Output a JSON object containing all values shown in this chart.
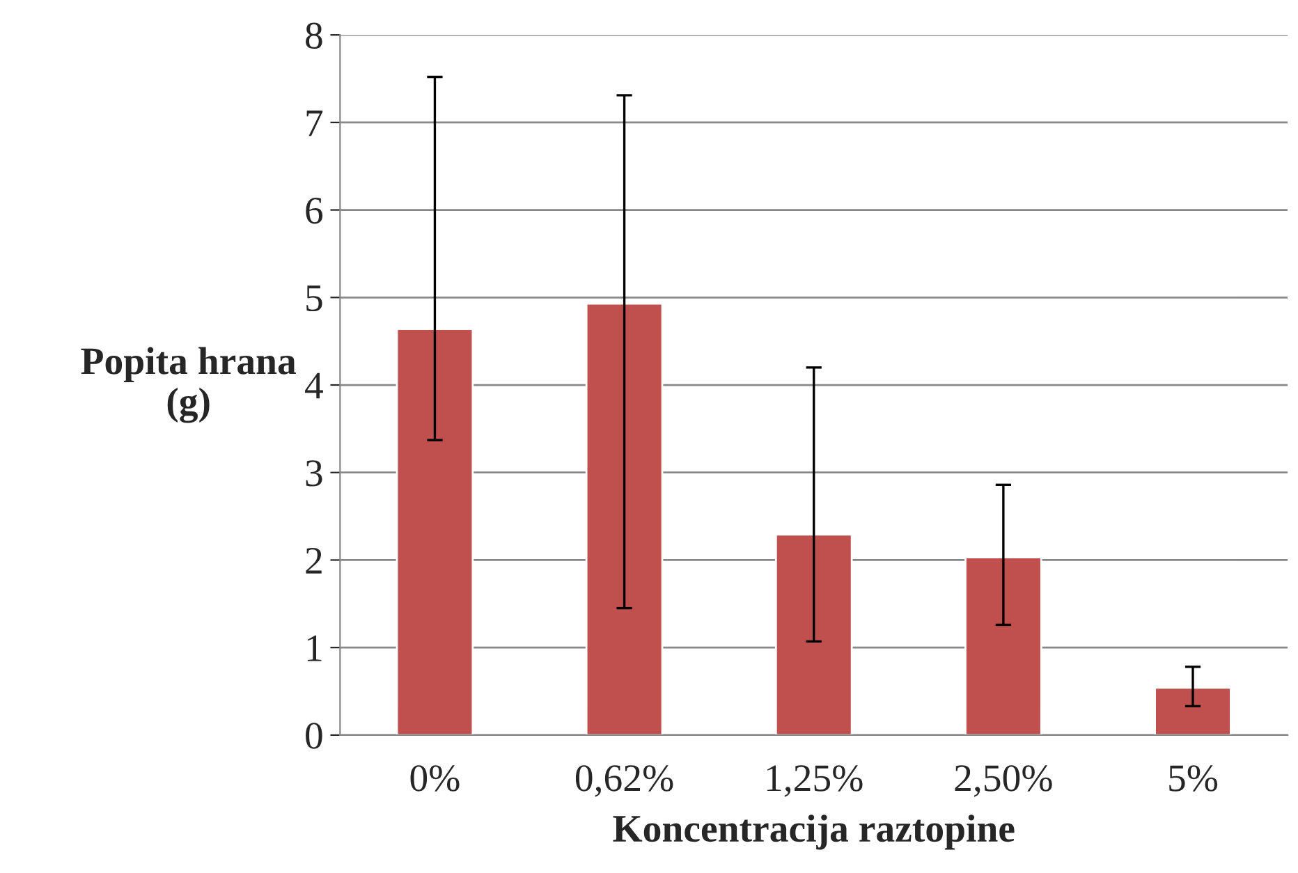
{
  "chart_data": {
    "type": "bar",
    "xlabel": "Koncentracija raztopine",
    "ylabel": "Popita hrana\n(g)",
    "categories": [
      "0%",
      "0,62%",
      "1,25%",
      "2,50%",
      "5%"
    ],
    "values": [
      4.64,
      4.93,
      2.29,
      2.03,
      0.54
    ],
    "errors": [
      [
        3.37,
        7.52
      ],
      [
        1.45,
        7.31
      ],
      [
        1.07,
        4.2
      ],
      [
        1.26,
        2.86
      ],
      [
        0.33,
        0.78
      ]
    ],
    "color": "#c0504d",
    "ylim": [
      0,
      8
    ],
    "yticks": [
      0,
      1,
      2,
      3,
      4,
      5,
      6,
      7,
      8
    ],
    "grid": "y"
  }
}
